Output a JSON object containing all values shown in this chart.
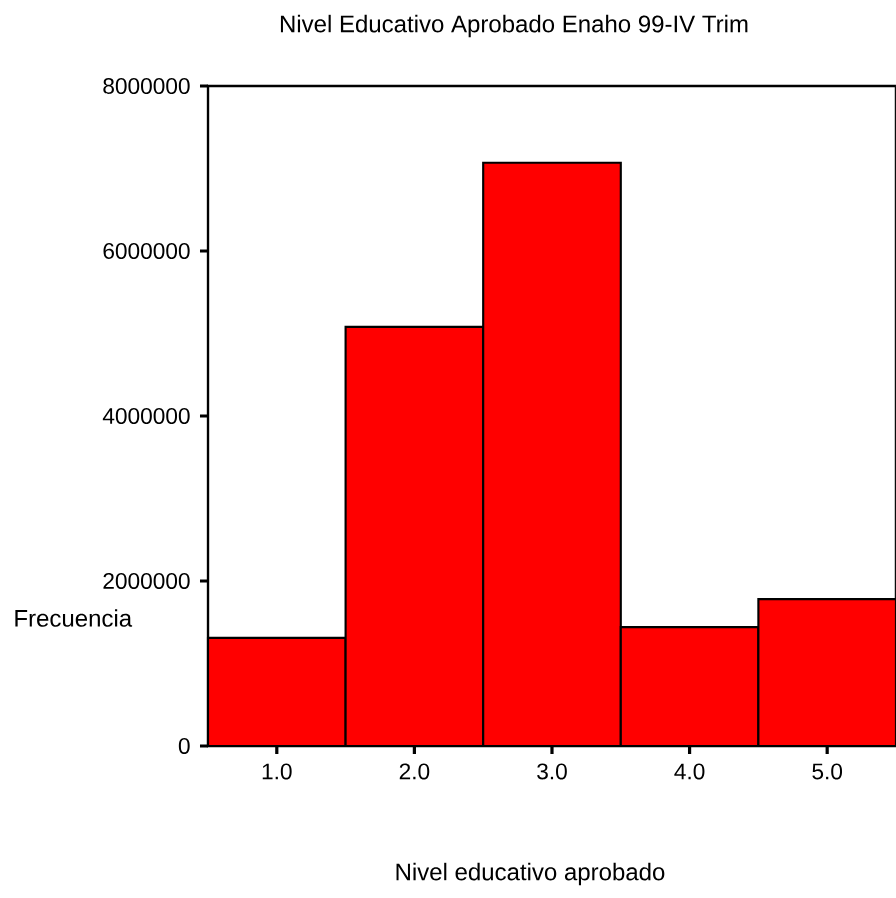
{
  "chart_data": {
    "type": "histogram",
    "title": "Nivel Educativo Aprobado Enaho 99-IV Trim",
    "xlabel": "Nivel educativo aprobado",
    "ylabel": "Frecuencia",
    "bins": [
      0.5,
      1.5,
      2.5,
      3.5,
      4.5,
      5.5
    ],
    "values": [
      1310000,
      5080000,
      7070000,
      1440000,
      1780000
    ],
    "color": "#ff0000",
    "xlim": [
      0.5,
      5.5
    ],
    "ylim": [
      0,
      8000000
    ],
    "xticks": [
      {
        "value": 1,
        "label": "1.0"
      },
      {
        "value": 2,
        "label": "2.0"
      },
      {
        "value": 3,
        "label": "3.0"
      },
      {
        "value": 4,
        "label": "4.0"
      },
      {
        "value": 5,
        "label": "5.0"
      }
    ],
    "yticks": [
      0,
      2000000,
      4000000,
      6000000,
      8000000
    ],
    "grid": false
  }
}
